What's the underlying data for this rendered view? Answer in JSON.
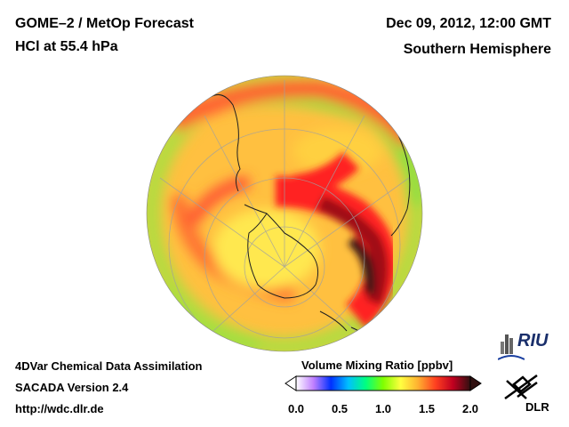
{
  "header": {
    "instrument": "GOME–2 / MetOp Forecast",
    "product": "HCl at 55.4 hPa",
    "datetime": "Dec 09, 2012, 12:00 GMT",
    "region": "Southern Hemisphere"
  },
  "footer": {
    "line1": "4DVar Chemical Data Assimilation",
    "line2": "SACADA Version 2.4",
    "line3": "http://wdc.dlr.de"
  },
  "colorbar": {
    "title": "Volume Mixing Ratio [ppbv]",
    "range": [
      0.0,
      2.0
    ],
    "ticks": [
      "0.0",
      "0.5",
      "1.0",
      "1.5",
      "2.0"
    ],
    "colors": [
      "#ffffff",
      "#c080ff",
      "#0030ff",
      "#00c0ff",
      "#00ff80",
      "#80ff00",
      "#ffff40",
      "#ffb030",
      "#ff4020",
      "#c00020",
      "#301010"
    ]
  },
  "logos": {
    "riu": "RIU",
    "dlr": "DLR"
  },
  "map": {
    "projection": "orthographic",
    "hemisphere": "south",
    "background_level_ppbv": 1.25,
    "vortex_peak_ppbv": 2.0
  }
}
